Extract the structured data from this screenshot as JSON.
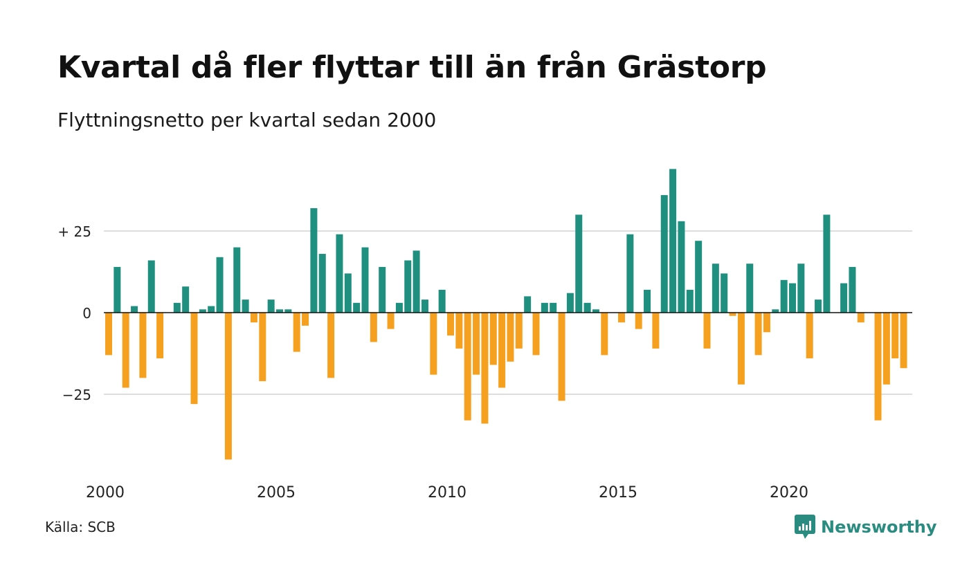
{
  "title": "Kvartal då fler flyttar till än från Grästorp",
  "subtitle": "Flyttningsnetto per kvartal sedan 2000",
  "source": "Källa: SCB",
  "brand": "Newsworthy",
  "colors": {
    "positive": "#1f9080",
    "negative": "#f5a01e",
    "grid": "#dddddd",
    "brand": "#2a8c80"
  },
  "chart_data": {
    "type": "bar",
    "title": "Kvartal då fler flyttar till än från Grästorp",
    "subtitle": "Flyttningsnetto per kvartal sedan 2000",
    "xlabel": "",
    "ylabel": "",
    "x_tick_labels": [
      "2000",
      "2005",
      "2010",
      "2015",
      "2020"
    ],
    "y_ticks": [
      25,
      0,
      -25
    ],
    "y_tick_labels": [
      "+ 25",
      "0",
      "−25"
    ],
    "ylim": [
      -45,
      45
    ],
    "grid": true,
    "legend": "none",
    "start": "2000 Q1",
    "values": [
      -13,
      14,
      -23,
      2,
      -20,
      16,
      -14,
      0,
      3,
      8,
      -28,
      1,
      2,
      17,
      -45,
      20,
      4,
      -3,
      -21,
      4,
      1,
      1,
      -12,
      -4,
      32,
      18,
      -20,
      24,
      12,
      3,
      20,
      -9,
      14,
      -5,
      3,
      16,
      19,
      4,
      -19,
      7,
      -7,
      -11,
      -33,
      -19,
      -34,
      -16,
      -23,
      -15,
      -11,
      5,
      -13,
      3,
      3,
      -27,
      6,
      30,
      3,
      1,
      -13,
      0,
      -3,
      24,
      -5,
      7,
      -11,
      36,
      44,
      28,
      7,
      22,
      -11,
      15,
      12,
      -1,
      -22,
      15,
      -13,
      -6,
      1,
      10,
      9,
      15,
      -14,
      4,
      30,
      0,
      9,
      14,
      -3,
      0,
      -33,
      -22,
      -14,
      -17
    ]
  }
}
